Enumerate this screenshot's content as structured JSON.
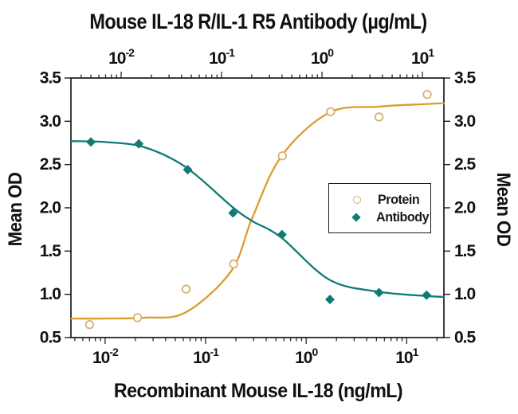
{
  "chart_data": {
    "type": "scatter",
    "subtype": "dose-response log-scale with fitted 4PL curves",
    "title": "Mouse IL-18 R/IL-1 R5 Antibody (µg/mL)",
    "xlabel_bottom": "Recombinant Mouse IL-18 (ng/mL)",
    "ylabel_left": "Mean OD",
    "ylabel_right": "Mean OD",
    "ylim": [
      0.5,
      3.5
    ],
    "y_ticks": [
      0.5,
      1.0,
      1.5,
      2.0,
      2.5,
      3.0,
      3.5
    ],
    "grid": false,
    "x_axis_bottom": {
      "scale": "log",
      "unit": "ng/mL",
      "log_range": [
        -2.34,
        1.37
      ],
      "decades": [
        -2,
        -1,
        0,
        1
      ],
      "tick_labels": [
        "10⁻²",
        "10⁻¹",
        "10⁰",
        "10¹"
      ]
    },
    "x_axis_top": {
      "scale": "log",
      "unit": "µg/mL",
      "log_range": [
        -2.5,
        1.214
      ],
      "decades": [
        -2,
        -1,
        0,
        1
      ],
      "tick_labels": [
        "10⁻²",
        "10⁻¹",
        "10⁰",
        "10¹"
      ]
    },
    "legend": {
      "position": "middle-right",
      "items": [
        {
          "label": "Protein",
          "marker": "open-circle",
          "color": "#D5AF6B"
        },
        {
          "label": "Antibody",
          "marker": "diamond",
          "color": "#0E7B74"
        }
      ]
    },
    "series": [
      {
        "name": "Protein",
        "axis": "bottom",
        "marker": "open-circle",
        "marker_color": "#D5AF6B",
        "line_color": "#DE9B2D",
        "x": [
          0.007,
          0.021,
          0.064,
          0.19,
          0.58,
          1.75,
          5.3,
          16
        ],
        "y": [
          0.65,
          0.73,
          1.06,
          1.35,
          2.6,
          3.11,
          3.05,
          3.31
        ],
        "fit_curve": [
          [
            0.0046,
            0.72
          ],
          [
            0.01,
            0.72
          ],
          [
            0.025,
            0.73
          ],
          [
            0.063,
            0.79
          ],
          [
            0.18,
            1.27
          ],
          [
            0.29,
            1.88
          ],
          [
            0.57,
            2.6
          ],
          [
            1.7,
            3.1
          ],
          [
            5.3,
            3.17
          ],
          [
            16,
            3.2
          ],
          [
            23.4,
            3.21
          ]
        ]
      },
      {
        "name": "Antibody",
        "axis": "top",
        "marker": "diamond",
        "marker_color": "#0E7B74",
        "line_color": "#0E7B74",
        "x": [
          0.005,
          0.015,
          0.046,
          0.13,
          0.4,
          1.2,
          3.7,
          11
        ],
        "y": [
          2.76,
          2.74,
          2.44,
          1.94,
          1.69,
          0.94,
          1.02,
          0.99
        ],
        "fit_curve": [
          [
            0.0032,
            2.77
          ],
          [
            0.0069,
            2.76
          ],
          [
            0.017,
            2.7
          ],
          [
            0.044,
            2.47
          ],
          [
            0.125,
            2.02
          ],
          [
            0.2,
            1.85
          ],
          [
            0.39,
            1.66
          ],
          [
            1.18,
            1.17
          ],
          [
            3.66,
            1.03
          ],
          [
            11.2,
            0.98
          ],
          [
            16.4,
            0.97
          ]
        ]
      }
    ]
  }
}
